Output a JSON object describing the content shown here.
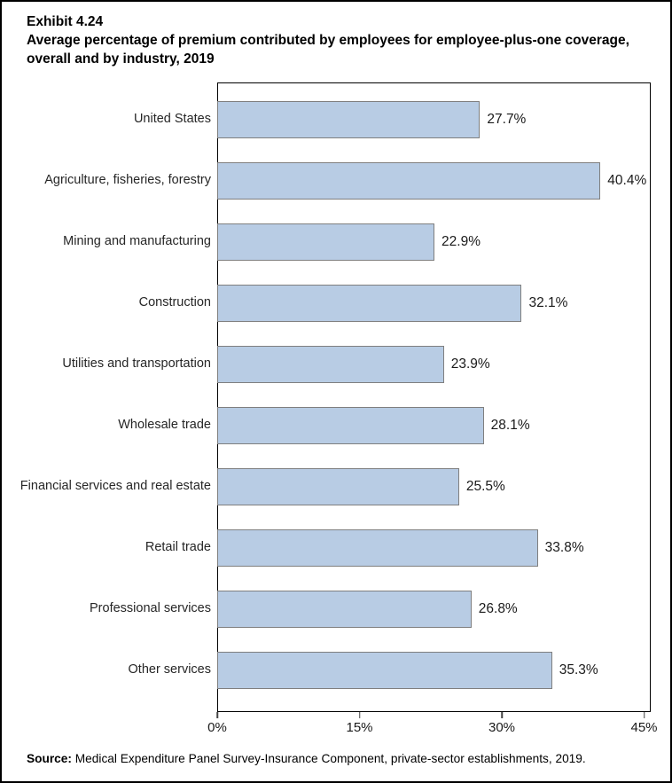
{
  "title": {
    "exhibit": "Exhibit 4.24",
    "line1": "Average percentage of premium contributed by employees for employee-plus-one coverage,",
    "line2": "overall and by industry, 2019"
  },
  "source": {
    "label": "Source:",
    "text": " Medical Expenditure Panel Survey-Insurance Component, private-sector establishments, 2019."
  },
  "chart_data": {
    "type": "bar",
    "orientation": "horizontal",
    "title": "Average percentage of premium contributed by employees for employee-plus-one coverage, overall and by industry, 2019",
    "categories": [
      "United States",
      "Agriculture, fisheries, forestry",
      "Mining and manufacturing",
      "Construction",
      "Utilities and transportation",
      "Wholesale trade",
      "Financial services and real estate",
      "Retail trade",
      "Professional services",
      "Other services"
    ],
    "values": [
      27.7,
      40.4,
      22.9,
      32.1,
      23.9,
      28.1,
      25.5,
      33.8,
      26.8,
      35.3
    ],
    "value_labels": [
      "27.7%",
      "40.4%",
      "22.9%",
      "32.1%",
      "23.9%",
      "28.1%",
      "25.5%",
      "33.8%",
      "26.8%",
      "35.3%"
    ],
    "x_tick_labels": [
      "0%",
      "15%",
      "30%",
      "45%"
    ],
    "x_tick_values": [
      0,
      15,
      30,
      45
    ],
    "xlim": [
      0,
      45.7
    ],
    "grid": false,
    "legend": "none",
    "bar_fill": "#B8CCE4",
    "bar_border": "#7F7F7F"
  }
}
